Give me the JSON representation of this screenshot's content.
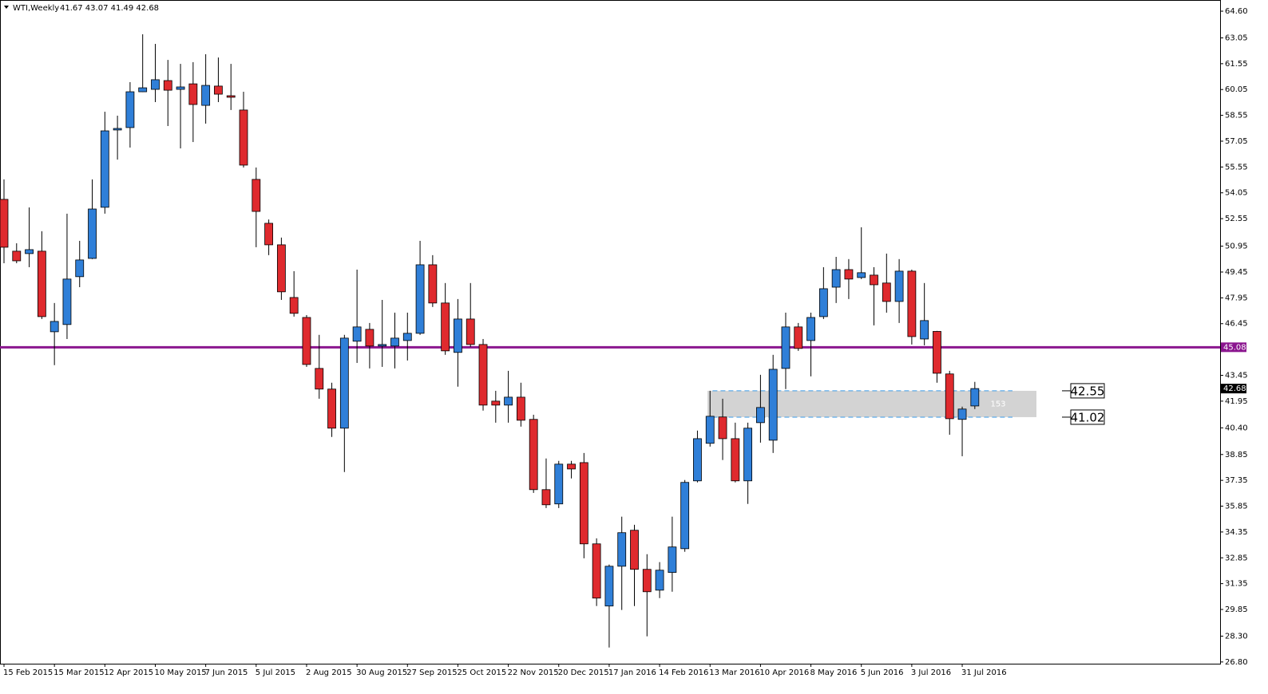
{
  "chart_data": {
    "type": "candlestick",
    "title": "WTI,Weekly",
    "info": "41.67 43.07 41.49 42.68",
    "categories": [
      "15 Feb 2015",
      null,
      null,
      null,
      "15 Mar 2015",
      null,
      null,
      null,
      "12 Apr 2015",
      null,
      null,
      null,
      "10 May 2015",
      null,
      null,
      null,
      "7 Jun 2015",
      null,
      null,
      null,
      "5 Jul 2015",
      null,
      null,
      null,
      "2 Aug 2015",
      null,
      null,
      null,
      "30 Aug 2015",
      null,
      null,
      null,
      "27 Sep 2015",
      null,
      null,
      null,
      "25 Oct 2015",
      null,
      null,
      null,
      "22 Nov 2015",
      null,
      null,
      null,
      "20 Dec 2015",
      null,
      null,
      null,
      "17 Jan 2016",
      null,
      null,
      null,
      "14 Feb 2016",
      null,
      null,
      null,
      "13 Mar 2016",
      null,
      null,
      null,
      "10 Apr 2016",
      null,
      null,
      null,
      "8 May 2016",
      null,
      null,
      null,
      "5 Jun 2016",
      null,
      null,
      null,
      "3 Jul 2016",
      null,
      null,
      null,
      "31 Jul 2016",
      null
    ],
    "open": [
      53.67,
      50.66,
      50.52,
      50.66,
      45.98,
      46.4,
      49.18,
      50.24,
      53.21,
      57.7,
      57.84,
      59.92,
      60.06,
      60.57,
      60.06,
      60.38,
      59.13,
      60.25,
      59.69,
      58.86,
      54.83,
      52.28,
      51.03,
      47.97,
      46.81,
      43.85,
      42.65,
      40.38,
      45.43,
      46.12,
      45.15,
      45.15,
      45.47,
      45.89,
      49.87,
      47.65,
      44.78,
      46.72,
      45.24,
      41.95,
      41.72,
      42.18,
      40.89,
      36.81,
      35.98,
      38.29,
      38.38,
      33.66,
      30.05,
      32.36,
      34.45,
      32.18,
      30.97,
      32.0,
      33.38,
      37.32,
      39.5,
      41.03,
      39.77,
      37.32,
      40.7,
      39.68,
      43.85,
      46.26,
      45.47,
      46.86,
      48.57,
      49.59,
      49.13,
      49.27,
      48.81,
      47.74,
      49.5,
      45.56,
      46.0,
      43.53,
      40.89,
      41.67
    ],
    "high": [
      54.83,
      51.12,
      53.2,
      51.82,
      47.65,
      52.84,
      51.26,
      54.83,
      58.76,
      58.53,
      60.48,
      63.26,
      62.7,
      61.77,
      61.54,
      61.64,
      62.1,
      61.91,
      61.54,
      59.92,
      55.52,
      52.5,
      51.45,
      49.5,
      46.95,
      45.8,
      43.02,
      45.8,
      49.59,
      46.49,
      47.83,
      47.09,
      47.09,
      51.26,
      50.43,
      48.81,
      47.88,
      48.81,
      45.56,
      42.55,
      43.71,
      43.02,
      41.16,
      38.62,
      38.48,
      38.48,
      38.94,
      33.98,
      32.46,
      35.24,
      34.77,
      33.06,
      32.6,
      35.24,
      37.37,
      40.24,
      42.55,
      42.09,
      40.7,
      40.7,
      43.48,
      44.64,
      47.09,
      46.49,
      47.09,
      49.73,
      50.33,
      50.2,
      52.05,
      49.73,
      50.52,
      50.2,
      49.59,
      48.81,
      46.03,
      43.71,
      41.63,
      43.07
    ],
    "low": [
      49.96,
      49.96,
      49.73,
      46.72,
      44.04,
      45.56,
      48.57,
      50.2,
      52.84,
      55.98,
      56.68,
      59.9,
      59.32,
      57.93,
      56.63,
      57.0,
      58.07,
      59.32,
      58.86,
      55.52,
      50.89,
      50.43,
      47.83,
      46.86,
      43.94,
      42.09,
      39.87,
      37.83,
      44.17,
      43.85,
      43.94,
      43.85,
      44.31,
      45.8,
      47.42,
      44.64,
      42.79,
      45.1,
      41.4,
      40.7,
      40.7,
      40.47,
      36.62,
      35.74,
      35.74,
      37.46,
      32.82,
      30.05,
      27.64,
      29.82,
      30.05,
      28.29,
      30.51,
      30.88,
      33.2,
      37.23,
      39.31,
      38.53,
      37.23,
      35.98,
      39.54,
      38.94,
      42.65,
      44.87,
      43.39,
      46.72,
      47.65,
      47.88,
      49.04,
      46.35,
      47.09,
      46.49,
      45.24,
      45.19,
      43.02,
      40.0,
      38.75,
      41.49
    ],
    "close": [
      50.89,
      50.1,
      50.75,
      46.86,
      46.58,
      49.04,
      50.15,
      53.11,
      57.65,
      57.79,
      59.92,
      60.15,
      60.62,
      60.01,
      60.2,
      59.18,
      60.29,
      59.78,
      59.6,
      55.66,
      52.97,
      51.03,
      48.3,
      47.05,
      44.08,
      42.65,
      40.38,
      45.61,
      46.26,
      45.15,
      45.24,
      45.61,
      45.89,
      49.87,
      47.65,
      44.87,
      46.72,
      45.24,
      41.72,
      41.72,
      42.18,
      40.84,
      36.81,
      35.93,
      38.29,
      38.01,
      33.66,
      30.51,
      32.36,
      34.31,
      32.18,
      30.88,
      32.13,
      33.48,
      37.23,
      39.77,
      41.07,
      39.77,
      37.32,
      40.38,
      41.58,
      43.8,
      46.26,
      45.01,
      46.81,
      48.48,
      49.59,
      49.04,
      49.41,
      48.71,
      47.74,
      49.5,
      45.7,
      46.63,
      43.57,
      40.93,
      41.49,
      42.68
    ],
    "up_color": "#2f7fd8",
    "down_color": "#df2a2e",
    "ylim": [
      26.7,
      65.25
    ],
    "yticks": [
      {
        "value": 64.6,
        "label": "64.60"
      },
      63.05,
      61.55,
      60.05,
      58.55,
      57.05,
      55.55,
      54.05,
      52.55,
      50.95,
      49.45,
      47.95,
      46.45,
      43.45,
      41.95,
      {
        "value": 40.4,
        "label": "40.40"
      },
      38.85,
      37.35,
      35.85,
      34.35,
      32.85,
      31.35,
      29.85,
      {
        "value": 28.3,
        "label": "28.30"
      },
      {
        "value": 26.8,
        "label": "26.80"
      }
    ],
    "hline": {
      "value": 45.08,
      "color": "#8b168f"
    },
    "zone": {
      "top": 42.55,
      "bottom": 41.02,
      "label": "153",
      "color": "#d3d3d3",
      "line_color": "#3a9be8"
    }
  }
}
